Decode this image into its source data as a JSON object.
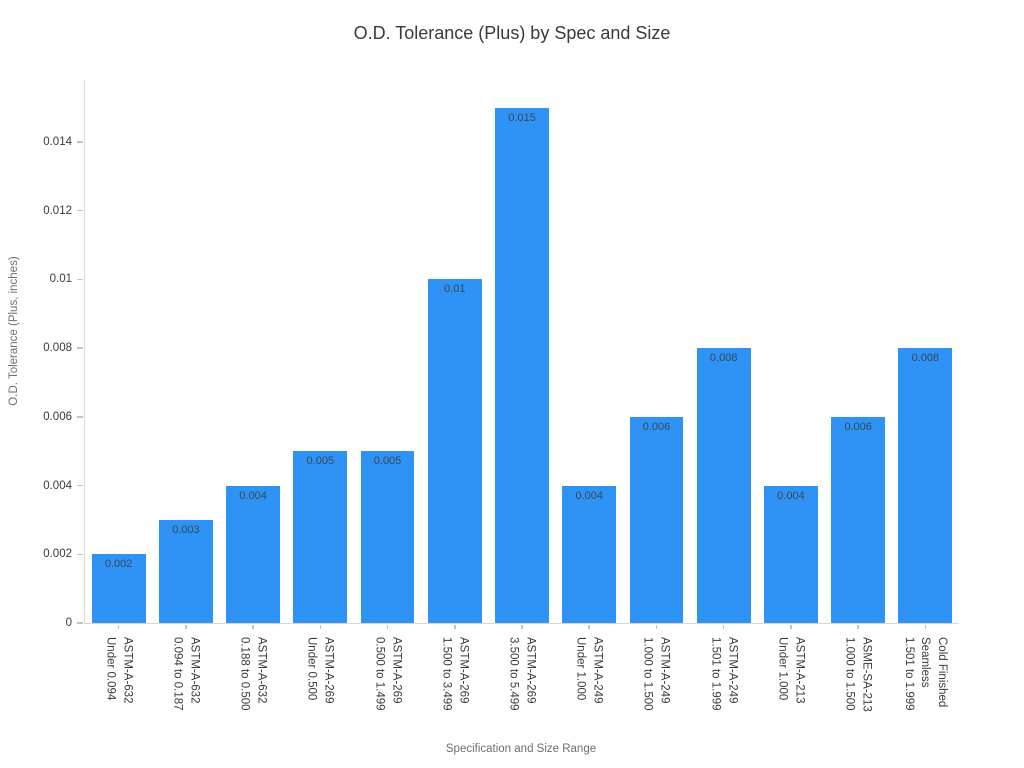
{
  "chart_data": {
    "type": "bar",
    "title": "O.D. Tolerance (Plus) by Spec and Size",
    "xlabel": "Specification and Size Range",
    "ylabel": "O.D. Tolerance (Plus, inches)",
    "ylim": [
      0,
      0.0158
    ],
    "grid": false,
    "legend": "none",
    "categories": [
      [
        "ASTM-A-632",
        "Under 0.094"
      ],
      [
        "ASTM-A-632",
        "0.094 to 0.187"
      ],
      [
        "ASTM-A-632",
        "0.188 to 0.500"
      ],
      [
        "ASTM-A-269",
        "Under 0.500"
      ],
      [
        "ASTM-A-269",
        "0.500 to 1.499"
      ],
      [
        "ASTM-A-269",
        "1.500 to 3.499"
      ],
      [
        "ASTM-A-269",
        "3.500 to 5.499"
      ],
      [
        "ASTM-A-249",
        "Under 1.000"
      ],
      [
        "ASTM-A-249",
        "1.000 to 1.500"
      ],
      [
        "ASTM-A-249",
        "1.501 to 1.999"
      ],
      [
        "ASTM-A-213",
        "Under 1.000"
      ],
      [
        "ASME-SA-213",
        "1.000 to 1.500"
      ],
      [
        "Cold Finished",
        "Seamless",
        "1.501 to 1.999"
      ]
    ],
    "values": [
      0.002,
      0.003,
      0.004,
      0.005,
      0.005,
      0.01,
      0.015,
      0.004,
      0.006,
      0.008,
      0.004,
      0.006,
      0.008
    ],
    "value_labels": [
      "0.002",
      "0.003",
      "0.004",
      "0.005",
      "0.005",
      "0.01",
      "0.015",
      "0.004",
      "0.006",
      "0.008",
      "0.004",
      "0.006",
      "0.008"
    ],
    "yticks": [
      {
        "value": 0,
        "label": "0"
      },
      {
        "value": 0.002,
        "label": "0.002"
      },
      {
        "value": 0.004,
        "label": "0.004"
      },
      {
        "value": 0.006,
        "label": "0.006"
      },
      {
        "value": 0.008,
        "label": "0.008"
      },
      {
        "value": 0.01,
        "label": "0.01"
      },
      {
        "value": 0.012,
        "label": "0.012"
      },
      {
        "value": 0.014,
        "label": "0.014"
      }
    ],
    "colors": {
      "bar": "#2e93f5",
      "spine": "#d7d7d7",
      "tick_mark": "#c2c2c2",
      "title_text": "#3a3a3a",
      "tick_label_text": "#3a3a3a",
      "axis_title_text": "#6e6e6e",
      "bar_value_text": "#374858",
      "background": "#ffffff"
    }
  }
}
